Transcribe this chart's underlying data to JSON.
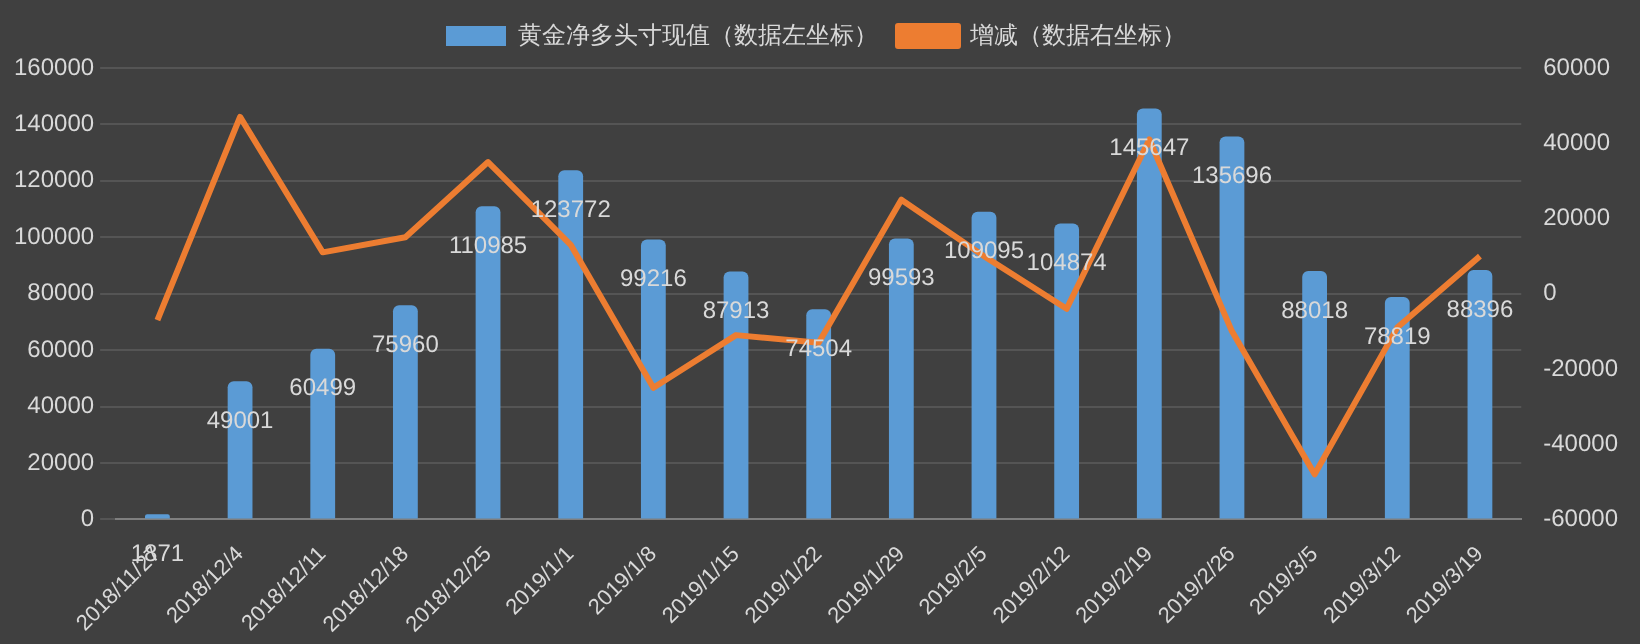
{
  "chart_data": {
    "type": "bar",
    "categories": [
      "2018/11/27",
      "2018/12/4",
      "2018/12/11",
      "2018/12/18",
      "2018/12/25",
      "2019/1/1",
      "2019/1/8",
      "2019/1/15",
      "2019/1/22",
      "2019/1/29",
      "2019/2/5",
      "2019/2/12",
      "2019/2/19",
      "2019/2/26",
      "2019/3/5",
      "2019/3/12",
      "2019/3/19"
    ],
    "series": [
      {
        "name": "黄金净多头寸现值（数据左坐标）",
        "color": "#5b9bd5",
        "values": [
          1871,
          49001,
          60499,
          75960,
          110985,
          123772,
          99216,
          87913,
          74504,
          99593,
          109095,
          104874,
          145647,
          135696,
          88018,
          78819,
          88396
        ],
        "value_labels": [
          "1871",
          "49001",
          "60499",
          "75960",
          "110985",
          "123772",
          "99216",
          "87913",
          "74504",
          "99593",
          "109095",
          "104874",
          "145647",
          "135696",
          "88018",
          "78819",
          "88396"
        ]
      },
      {
        "name": "增减（数据右坐标）",
        "type": "line",
        "axis": "y2",
        "color": "#ed7d31",
        "values": [
          -7000,
          47000,
          11000,
          15000,
          35000,
          13000,
          -25000,
          -11000,
          -13000,
          25000,
          10000,
          -4000,
          41000,
          -10000,
          -48000,
          -9000,
          10000
        ]
      }
    ],
    "ylim": [
      0,
      160000
    ],
    "yticks": [
      0,
      20000,
      40000,
      60000,
      80000,
      100000,
      120000,
      140000,
      160000
    ],
    "y2lim": [
      -60000,
      60000
    ],
    "y2ticks": [
      -60000,
      -40000,
      -20000,
      0,
      20000,
      40000,
      60000
    ],
    "grid": "y",
    "legend": "top",
    "marker": "none"
  }
}
